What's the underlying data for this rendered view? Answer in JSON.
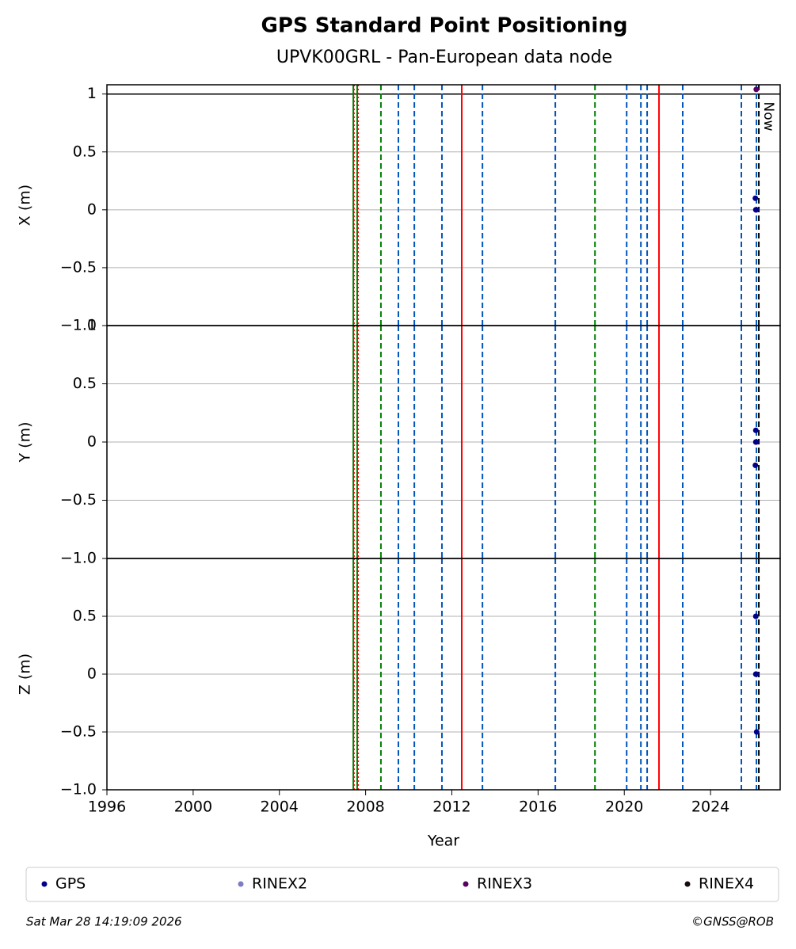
{
  "title": "GPS Standard Point Positioning",
  "subtitle": "UPVK00GRL - Pan-European data node",
  "footer": {
    "left": "Sat Mar 28 14:19:09 2026",
    "right": "©GNSS@ROB"
  },
  "now": {
    "x": 2026.24,
    "label": "Now"
  },
  "events": [
    {
      "x": 2007.43,
      "color": "#008000",
      "style": "solid"
    },
    {
      "x": 2007.46,
      "color": "#ff0000",
      "style": "dotted"
    },
    {
      "x": 2007.61,
      "color": "#008000",
      "style": "solid"
    },
    {
      "x": 2007.65,
      "color": "#ff0000",
      "style": "dotted"
    },
    {
      "x": 2008.71,
      "color": "#008000",
      "style": "dashed"
    },
    {
      "x": 2009.52,
      "color": "#0055bb",
      "style": "dashed"
    },
    {
      "x": 2010.26,
      "color": "#0055bb",
      "style": "dashed"
    },
    {
      "x": 2011.54,
      "color": "#0055bb",
      "style": "dashed"
    },
    {
      "x": 2012.46,
      "color": "#ff0000",
      "style": "solid"
    },
    {
      "x": 2013.42,
      "color": "#0055bb",
      "style": "dashed"
    },
    {
      "x": 2016.8,
      "color": "#0055bb",
      "style": "dashed"
    },
    {
      "x": 2018.64,
      "color": "#008000",
      "style": "dashed"
    },
    {
      "x": 2020.11,
      "color": "#0055bb",
      "style": "dashed"
    },
    {
      "x": 2020.77,
      "color": "#0055bb",
      "style": "dashed"
    },
    {
      "x": 2021.06,
      "color": "#0055bb",
      "style": "dashed"
    },
    {
      "x": 2021.61,
      "color": "#ff0000",
      "style": "solid"
    },
    {
      "x": 2022.71,
      "color": "#0055bb",
      "style": "dashed"
    },
    {
      "x": 2025.43,
      "color": "#0055bb",
      "style": "dashed"
    },
    {
      "x": 2026.13,
      "color": "#0055bb",
      "style": "dashed"
    }
  ],
  "chart_data": [
    {
      "type": "scatter",
      "y_label": "X (m)",
      "xlim": [
        1996,
        2027.23
      ],
      "ylim": [
        -1,
        1.08
      ],
      "reference_line": 1,
      "yticks": [
        {
          "value": -1,
          "label": "−1.0"
        },
        {
          "value": -0.5,
          "label": "−0.5"
        },
        0.0,
        0.5,
        1.0
      ],
      "grid": true,
      "series": [
        {
          "name": "GPS",
          "color": "#00008b",
          "x": [
            2026.08,
            2026.1,
            2026.12
          ],
          "values": [
            0.1,
            0,
            0
          ]
        },
        {
          "name": "RINEX2",
          "color": "#7b7bc8",
          "x": [],
          "values": []
        },
        {
          "name": "RINEX3",
          "color": "#5a0060",
          "x": [
            2026.12
          ],
          "values": [
            1.04
          ]
        },
        {
          "name": "RINEX4",
          "color": "#1a0a10",
          "x": [],
          "values": []
        }
      ]
    },
    {
      "type": "scatter",
      "y_label": "Y (m)",
      "xlim": [
        1996,
        2027.23
      ],
      "ylim": [
        -1,
        1
      ],
      "yticks": [
        {
          "value": -1,
          "label": "−1.0"
        },
        {
          "value": -0.5,
          "label": "−0.5"
        },
        0.0,
        0.5,
        1.0
      ],
      "grid": true,
      "series": [
        {
          "name": "GPS",
          "color": "#00008b",
          "x": [
            2026.1,
            2026.1,
            2026.12,
            2026.08
          ],
          "values": [
            0.1,
            0,
            0,
            -0.2
          ]
        },
        {
          "name": "RINEX2",
          "color": "#7b7bc8",
          "x": [],
          "values": []
        },
        {
          "name": "RINEX3",
          "color": "#5a0060",
          "x": [],
          "values": []
        },
        {
          "name": "RINEX4",
          "color": "#1a0a10",
          "x": [],
          "values": []
        }
      ]
    },
    {
      "type": "scatter",
      "y_label": "Z (m)",
      "x_label": "Year",
      "xlim": [
        1996,
        2027.23
      ],
      "ylim": [
        -1,
        1
      ],
      "xticks": [
        1996,
        2000,
        2004,
        2008,
        2012,
        2016,
        2020,
        2024
      ],
      "yticks": [
        {
          "value": -1,
          "label": "−1.0"
        },
        {
          "value": -0.5,
          "label": "−0.5"
        },
        0.0,
        0.5
      ],
      "grid": true,
      "series": [
        {
          "name": "GPS",
          "color": "#00008b",
          "x": [
            2026.1,
            2026.1,
            2026.12,
            2026.14
          ],
          "values": [
            0.5,
            0,
            0,
            -0.5
          ]
        },
        {
          "name": "RINEX2",
          "color": "#7b7bc8",
          "x": [],
          "values": []
        },
        {
          "name": "RINEX3",
          "color": "#5a0060",
          "x": [],
          "values": []
        },
        {
          "name": "RINEX4",
          "color": "#1a0a10",
          "x": [],
          "values": []
        }
      ]
    }
  ]
}
